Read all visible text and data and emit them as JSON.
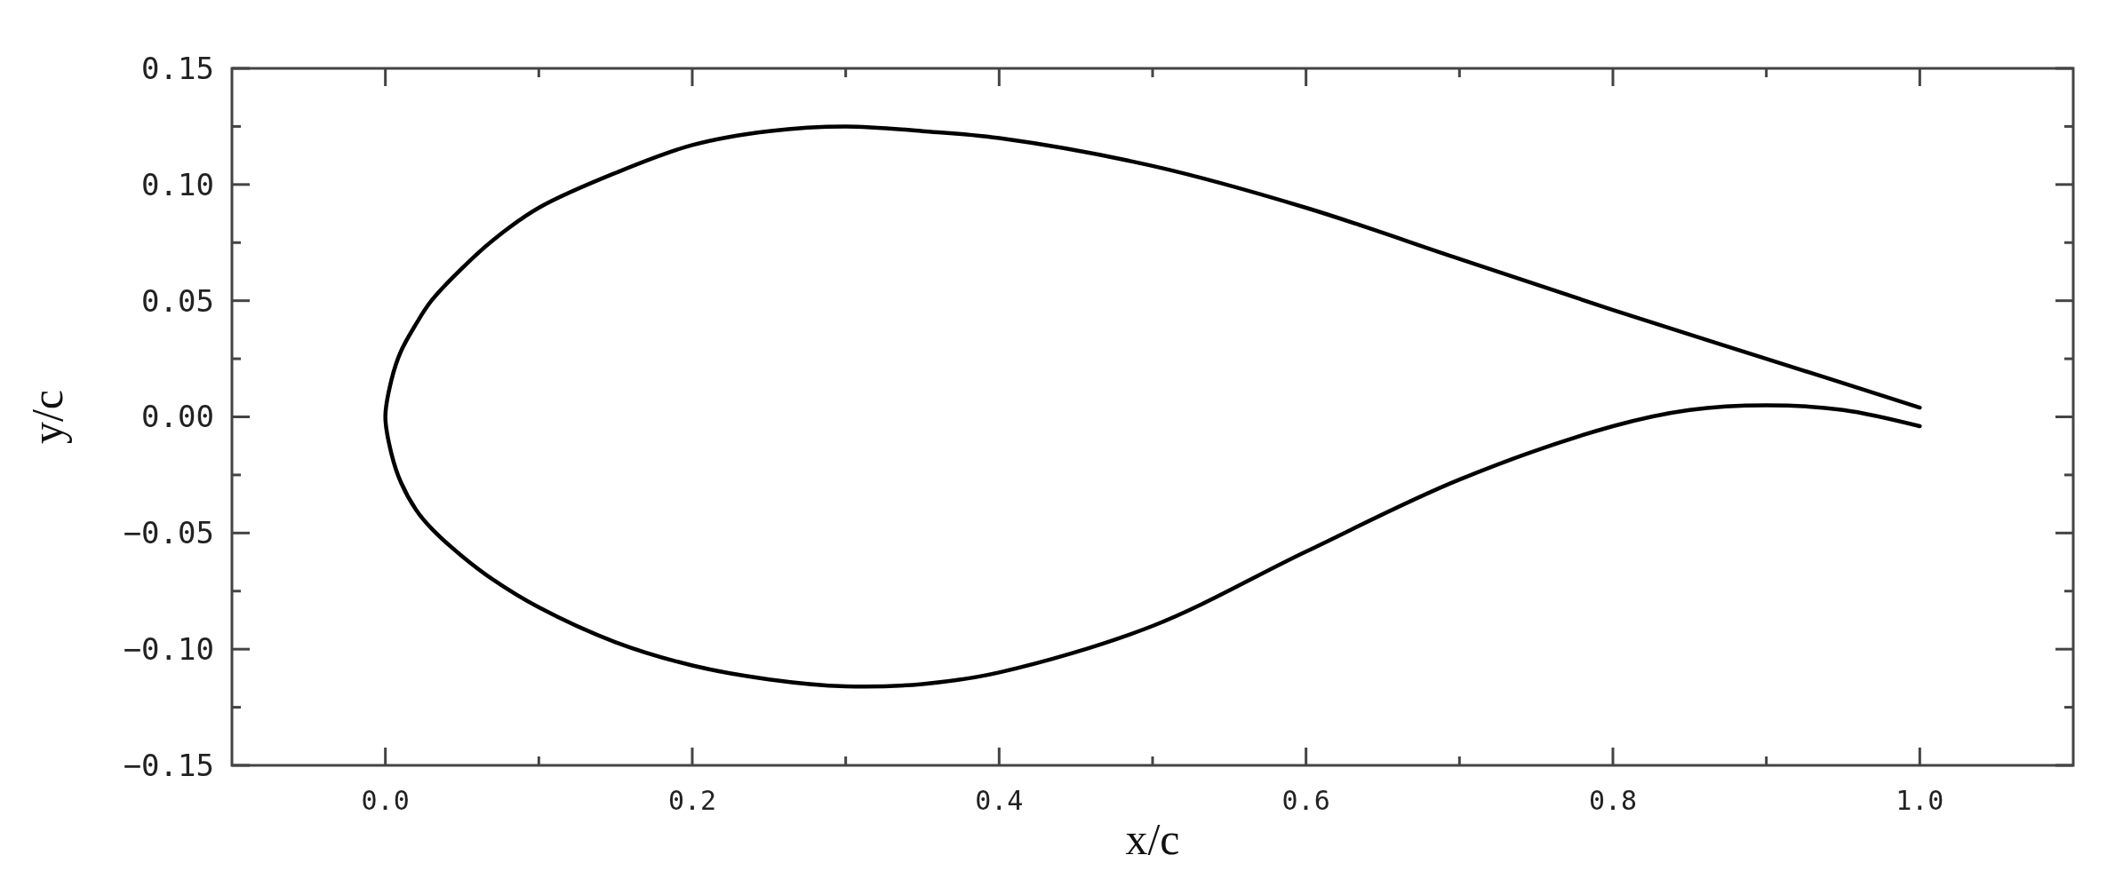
{
  "chart_data": {
    "type": "line",
    "xlabel": "x/c",
    "ylabel": "y/c",
    "xlim": [
      -0.1,
      1.1
    ],
    "xticks": [
      {
        "value": 0,
        "label": "0.0"
      },
      {
        "value": 0.1,
        "label": null
      },
      {
        "value": 0.2,
        "label": "0.2"
      },
      {
        "value": 0.3,
        "label": null
      },
      {
        "value": 0.4,
        "label": "0.4"
      },
      {
        "value": 0.5,
        "label": null
      },
      {
        "value": 0.6,
        "label": "0.6"
      },
      {
        "value": 0.7,
        "label": null
      },
      {
        "value": 0.8,
        "label": "0.8"
      },
      {
        "value": 0.9,
        "label": null
      },
      {
        "value": 1,
        "label": "1.0"
      }
    ],
    "ylim": [
      -0.15,
      0.15
    ],
    "yticks": [
      {
        "value": -0.15,
        "label": "−0.15"
      },
      {
        "value": -0.125,
        "label": null
      },
      {
        "value": -0.1,
        "label": "−0.10"
      },
      {
        "value": -0.075,
        "label": null
      },
      {
        "value": -0.05,
        "label": "−0.05"
      },
      {
        "value": -0.025,
        "label": null
      },
      {
        "value": 0,
        "label": "0.00"
      },
      {
        "value": 0.025,
        "label": null
      },
      {
        "value": 0.05,
        "label": "0.05"
      },
      {
        "value": 0.075,
        "label": null
      },
      {
        "value": 0.1,
        "label": "0.10"
      },
      {
        "value": 0.125,
        "label": null
      },
      {
        "value": 0.15,
        "label": "0.15"
      }
    ],
    "grid": false,
    "marker": "none",
    "line_style": "solid",
    "series": [
      {
        "color": "#000000",
        "x": [
          1.0,
          0.9,
          0.8,
          0.7,
          0.6,
          0.5,
          0.4,
          0.35,
          0.3,
          0.25,
          0.2,
          0.15,
          0.1,
          0.07,
          0.05,
          0.03,
          0.02,
          0.01,
          0.004,
          0.0,
          0.004,
          0.01,
          0.02,
          0.03,
          0.05,
          0.07,
          0.1,
          0.15,
          0.2,
          0.25,
          0.3,
          0.35,
          0.4,
          0.5,
          0.6,
          0.7,
          0.8,
          0.85,
          0.9,
          0.95,
          1.0
        ],
        "values": [
          0.004,
          0.025,
          0.046,
          0.068,
          0.09,
          0.108,
          0.12,
          0.123,
          0.125,
          0.123,
          0.117,
          0.105,
          0.09,
          0.076,
          0.064,
          0.05,
          0.04,
          0.028,
          0.016,
          0.0,
          -0.016,
          -0.028,
          -0.04,
          -0.048,
          -0.06,
          -0.07,
          -0.082,
          -0.097,
          -0.107,
          -0.113,
          -0.116,
          -0.115,
          -0.11,
          -0.09,
          -0.058,
          -0.027,
          -0.004,
          0.003,
          0.005,
          0.003,
          -0.004
        ]
      }
    ]
  }
}
